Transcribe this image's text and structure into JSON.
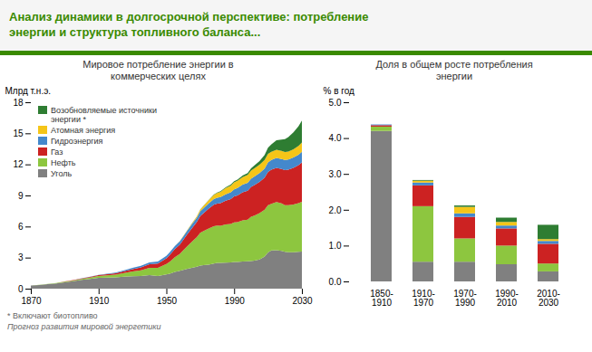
{
  "title": "Анализ динамики в долгосрочной перспективе: потребление\nэнергии и структура топливного баланса...",
  "chart_data": [
    {
      "type": "area",
      "stacked": true,
      "title": "Мировое потребление энергии в\nкоммерческих целях",
      "y_label": "Млрд т.н.э.",
      "annotations": [
        "* Включают биотопливо",
        "Прогноз развития мировой энергетики"
      ],
      "x": [
        1870,
        1875,
        1880,
        1885,
        1890,
        1895,
        1900,
        1905,
        1910,
        1915,
        1920,
        1925,
        1930,
        1935,
        1940,
        1945,
        1950,
        1952,
        1955,
        1958,
        1960,
        1962,
        1965,
        1968,
        1970,
        1972,
        1975,
        1978,
        1980,
        1982,
        1985,
        1988,
        1990,
        1992,
        1995,
        1998,
        2000,
        2002,
        2005,
        2008,
        2010,
        2012,
        2015,
        2018,
        2020,
        2022,
        2025,
        2028,
        2030
      ],
      "series": [
        {
          "name": "Уголь",
          "color": "#808080",
          "values": [
            0.3,
            0.36,
            0.43,
            0.51,
            0.62,
            0.72,
            0.85,
            0.95,
            1.05,
            1.08,
            1.1,
            1.15,
            1.2,
            1.22,
            1.3,
            1.22,
            1.38,
            1.45,
            1.62,
            1.72,
            1.82,
            1.9,
            2.02,
            2.12,
            2.22,
            2.28,
            2.32,
            2.42,
            2.5,
            2.5,
            2.52,
            2.53,
            2.57,
            2.58,
            2.62,
            2.64,
            2.66,
            2.7,
            2.82,
            3.1,
            3.5,
            3.7,
            3.72,
            3.65,
            3.55,
            3.52,
            3.52,
            3.55,
            3.58
          ]
        },
        {
          "name": "Нефть",
          "color": "#8dc63f",
          "values": [
            0.0,
            0.01,
            0.02,
            0.03,
            0.05,
            0.07,
            0.1,
            0.13,
            0.18,
            0.21,
            0.26,
            0.36,
            0.46,
            0.56,
            0.7,
            0.8,
            1.0,
            1.15,
            1.42,
            1.65,
            1.9,
            2.15,
            2.5,
            2.85,
            3.18,
            3.3,
            3.5,
            3.6,
            3.6,
            3.58,
            3.68,
            3.72,
            3.82,
            3.85,
            3.98,
            4.02,
            4.28,
            4.35,
            4.48,
            4.52,
            4.55,
            4.5,
            4.65,
            4.58,
            4.52,
            4.55,
            4.6,
            4.7,
            4.8
          ]
        },
        {
          "name": "Газ",
          "color": "#cc2222",
          "values": [
            0.0,
            0.0,
            0.0,
            0.01,
            0.02,
            0.03,
            0.04,
            0.05,
            0.07,
            0.1,
            0.13,
            0.17,
            0.22,
            0.28,
            0.35,
            0.4,
            0.55,
            0.65,
            0.78,
            0.9,
            1.0,
            1.12,
            1.3,
            1.48,
            1.62,
            1.72,
            1.92,
            2.08,
            2.12,
            2.18,
            2.3,
            2.4,
            2.52,
            2.58,
            2.7,
            2.8,
            2.88,
            2.95,
            3.0,
            3.1,
            3.22,
            3.28,
            3.3,
            3.32,
            3.38,
            3.42,
            3.55,
            3.68,
            3.82
          ]
        },
        {
          "name": "Гидроэнергия",
          "color": "#4488cc",
          "values": [
            0.0,
            0.0,
            0.0,
            0.0,
            0.01,
            0.01,
            0.02,
            0.03,
            0.04,
            0.05,
            0.07,
            0.09,
            0.12,
            0.15,
            0.18,
            0.2,
            0.24,
            0.26,
            0.28,
            0.31,
            0.33,
            0.36,
            0.38,
            0.41,
            0.44,
            0.47,
            0.5,
            0.54,
            0.56,
            0.58,
            0.62,
            0.65,
            0.68,
            0.7,
            0.74,
            0.77,
            0.8,
            0.83,
            0.86,
            0.89,
            0.92,
            0.94,
            0.95,
            0.97,
            0.98,
            0.99,
            1.0,
            1.01,
            1.02
          ]
        },
        {
          "name": "Атомная энергия",
          "color": "#f5c518",
          "values": [
            0.0,
            0.0,
            0.0,
            0.0,
            0.0,
            0.0,
            0.0,
            0.0,
            0.0,
            0.0,
            0.0,
            0.0,
            0.0,
            0.0,
            0.0,
            0.0,
            0.0,
            0.0,
            0.01,
            0.02,
            0.03,
            0.05,
            0.08,
            0.12,
            0.16,
            0.22,
            0.3,
            0.4,
            0.46,
            0.52,
            0.6,
            0.65,
            0.68,
            0.7,
            0.74,
            0.76,
            0.78,
            0.79,
            0.8,
            0.81,
            0.82,
            0.8,
            0.8,
            0.78,
            0.76,
            0.75,
            0.78,
            0.84,
            0.9
          ]
        },
        {
          "name": "Возобновляемые источники\nэнергии *",
          "color": "#2e7d32",
          "values": [
            0.0,
            0.0,
            0.0,
            0.0,
            0.0,
            0.0,
            0.0,
            0.0,
            0.0,
            0.0,
            0.0,
            0.0,
            0.0,
            0.0,
            0.0,
            0.0,
            0.0,
            0.0,
            0.0,
            0.0,
            0.0,
            0.0,
            0.01,
            0.01,
            0.02,
            0.02,
            0.03,
            0.04,
            0.05,
            0.06,
            0.07,
            0.09,
            0.1,
            0.12,
            0.15,
            0.18,
            0.22,
            0.28,
            0.35,
            0.48,
            0.6,
            0.72,
            0.9,
            1.1,
            1.25,
            1.4,
            1.65,
            1.9,
            2.1
          ]
        }
      ],
      "xlim": [
        1870,
        2030
      ],
      "xticks": [
        1870,
        1910,
        1950,
        1990,
        2030
      ],
      "ylim": [
        0,
        18
      ],
      "yticks": [
        0,
        3,
        6,
        9,
        12,
        15,
        18
      ],
      "grid": false,
      "legend": "upper left"
    },
    {
      "type": "bar",
      "stacked": true,
      "title": "Доля в общем росте потребления\nэнергии",
      "y_label": "% в год",
      "categories": [
        "1850-\n1910",
        "1910-\n1970",
        "1970-\n1990",
        "1990-\n2010",
        "2010-\n2030"
      ],
      "series": [
        {
          "name": "Уголь",
          "color": "#808080",
          "values": [
            4.2,
            0.55,
            0.55,
            0.48,
            0.28
          ]
        },
        {
          "name": "Нефть",
          "color": "#8dc63f",
          "values": [
            0.12,
            1.55,
            0.65,
            0.52,
            0.22
          ]
        },
        {
          "name": "Газ",
          "color": "#cc2222",
          "values": [
            0.04,
            0.58,
            0.6,
            0.48,
            0.55
          ]
        },
        {
          "name": "Гидроэнергия",
          "color": "#4488cc",
          "values": [
            0.02,
            0.08,
            0.1,
            0.08,
            0.08
          ]
        },
        {
          "name": "Атомная энергия",
          "color": "#f5c518",
          "values": [
            0.0,
            0.05,
            0.18,
            0.1,
            0.05
          ]
        },
        {
          "name": "Возобновляемые источники\nэнергии *",
          "color": "#2e7d32",
          "values": [
            0.0,
            0.02,
            0.04,
            0.12,
            0.4
          ]
        }
      ],
      "ylim": [
        0,
        5
      ],
      "yticks": [
        0,
        1,
        2,
        3,
        4,
        5
      ],
      "grid": false
    }
  ]
}
